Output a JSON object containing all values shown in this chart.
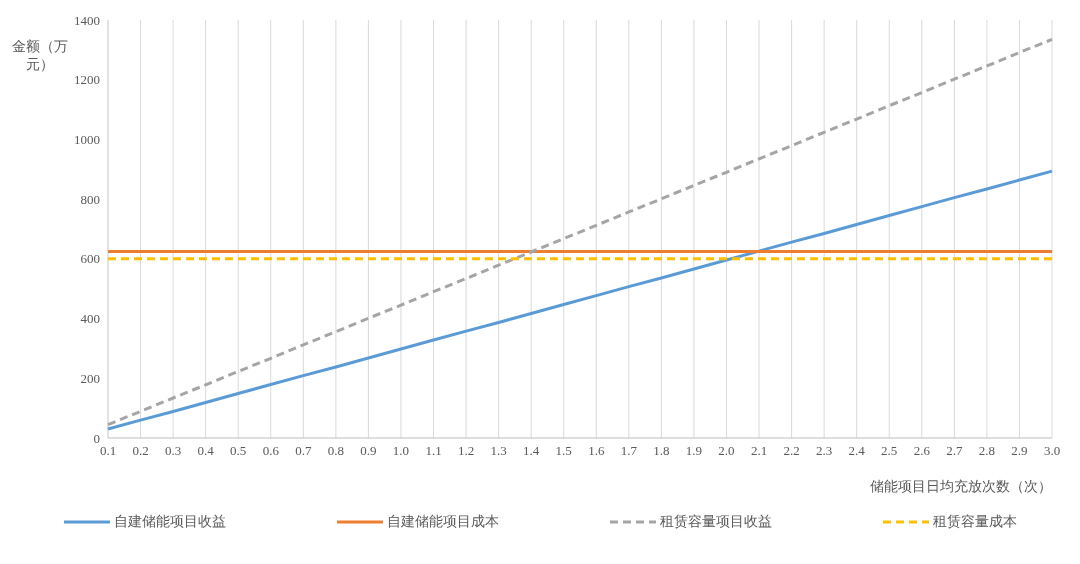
{
  "chart_data": {
    "type": "line",
    "xlabel": "储能项目日均充放次数（次）",
    "ylabel": "金额（万元）",
    "categories": [
      "0.1",
      "0.2",
      "0.3",
      "0.4",
      "0.5",
      "0.6",
      "0.7",
      "0.8",
      "0.9",
      "1.0",
      "1.1",
      "1.2",
      "1.3",
      "1.4",
      "1.5",
      "1.6",
      "1.7",
      "1.8",
      "1.9",
      "2.0",
      "2.1",
      "2.2",
      "2.3",
      "2.4",
      "2.5",
      "2.6",
      "2.7",
      "2.8",
      "2.9",
      "3.0"
    ],
    "series": [
      {
        "name": "自建储能项目收益",
        "color": "#5b9bd5",
        "line_style": "solid",
        "values": [
          30,
          60,
          89,
          119,
          149,
          179,
          209,
          238,
          268,
          298,
          328,
          358,
          387,
          417,
          447,
          477,
          507,
          536,
          566,
          596,
          626,
          656,
          685,
          715,
          745,
          775,
          805,
          834,
          864,
          894
        ]
      },
      {
        "name": "自建储能项目成本",
        "color": "#ed7d31",
        "line_style": "solid",
        "values": [
          625,
          625,
          625,
          625,
          625,
          625,
          625,
          625,
          625,
          625,
          625,
          625,
          625,
          625,
          625,
          625,
          625,
          625,
          625,
          625,
          625,
          625,
          625,
          625,
          625,
          625,
          625,
          625,
          625,
          625
        ]
      },
      {
        "name": "租赁容量项目收益",
        "color": "#a5a5a5",
        "line_style": "dashed",
        "values": [
          45,
          89,
          134,
          178,
          223,
          267,
          312,
          356,
          401,
          445,
          490,
          534,
          579,
          623,
          668,
          712,
          757,
          801,
          846,
          890,
          935,
          979,
          1024,
          1068,
          1113,
          1157,
          1202,
          1246,
          1291,
          1335
        ]
      },
      {
        "name": "租赁容量成本",
        "color": "#ffc000",
        "line_style": "dashed",
        "values": [
          600,
          600,
          600,
          600,
          600,
          600,
          600,
          600,
          600,
          600,
          600,
          600,
          600,
          600,
          600,
          600,
          600,
          600,
          600,
          600,
          600,
          600,
          600,
          600,
          600,
          600,
          600,
          600,
          600,
          600
        ]
      }
    ],
    "ylim": [
      0,
      1400
    ],
    "yticks": [
      0,
      200,
      400,
      600,
      800,
      1000,
      1200,
      1400
    ],
    "grid": "x",
    "legend": "bottom",
    "marker": "none"
  }
}
